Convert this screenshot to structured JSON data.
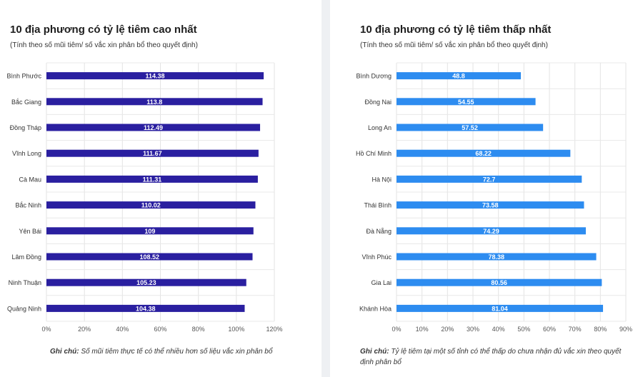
{
  "chart_data": [
    {
      "type": "bar",
      "orientation": "horizontal",
      "title": "10 địa phương có tỷ lệ tiêm cao nhất",
      "subtitle": "(Tính theo số mũi tiêm/ số vắc xin phân bổ theo quyết định)",
      "categories": [
        "Bình Phước",
        "Bắc Giang",
        "Đồng Tháp",
        "Vĩnh Long",
        "Cà Mau",
        "Bắc Ninh",
        "Yên Bái",
        "Lâm Đồng",
        "Ninh Thuận",
        "Quảng Ninh"
      ],
      "values": [
        114.38,
        113.8,
        112.49,
        111.67,
        111.31,
        110.02,
        109,
        108.52,
        105.23,
        104.38
      ],
      "value_labels": [
        "114.38",
        "113.8",
        "112.49",
        "111.67",
        "111.31",
        "110.02",
        "109",
        "108.52",
        "105.23",
        "104.38"
      ],
      "xlim": [
        0,
        120
      ],
      "xticks": [
        0,
        20,
        40,
        60,
        80,
        100,
        120
      ],
      "xtick_labels": [
        "0%",
        "20%",
        "40%",
        "60%",
        "80%",
        "100%",
        "120%"
      ],
      "color": "#2a1fa0",
      "grid": true,
      "note_label": "Ghi chú:",
      "note_text": "Số mũi tiêm thực tế có thể nhiều hơn số liệu vắc xin phân bổ"
    },
    {
      "type": "bar",
      "orientation": "horizontal",
      "title": "10 địa phương có tỷ lệ tiêm thấp nhất",
      "subtitle": "(Tính theo số mũi tiêm/ số vắc xin phân bổ theo quyết định)",
      "categories": [
        "Bình Dương",
        "Đồng Nai",
        "Long An",
        "Hồ Chí Minh",
        "Hà Nội",
        "Thái Bình",
        "Đà Nẵng",
        "Vĩnh Phúc",
        "Gia Lai",
        "Khánh Hòa"
      ],
      "values": [
        48.8,
        54.55,
        57.52,
        68.22,
        72.7,
        73.58,
        74.29,
        78.38,
        80.56,
        81.04
      ],
      "value_labels": [
        "48.8",
        "54.55",
        "57.52",
        "68.22",
        "72.7",
        "73.58",
        "74.29",
        "78.38",
        "80.56",
        "81.04"
      ],
      "xlim": [
        0,
        90
      ],
      "xticks": [
        0,
        10,
        20,
        30,
        40,
        50,
        60,
        70,
        80,
        90
      ],
      "xtick_labels": [
        "0%",
        "10%",
        "20%",
        "30%",
        "40%",
        "50%",
        "60%",
        "70%",
        "80%",
        "90%"
      ],
      "color": "#2d8cf0",
      "grid": true,
      "note_label": "Ghi chú:",
      "note_text": "Tỷ lệ tiêm tại một số tỉnh có thể thấp do chưa nhận đủ vắc xin theo quyết định phân bổ"
    }
  ]
}
